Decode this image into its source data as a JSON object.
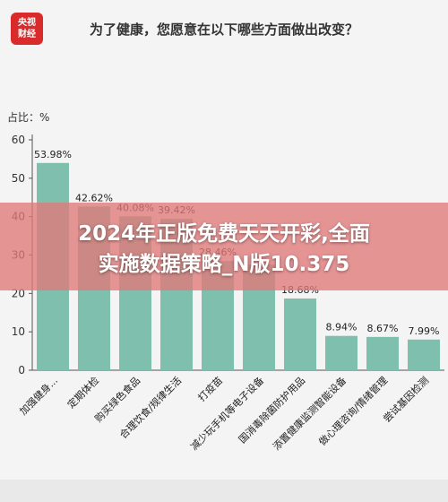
{
  "header": {
    "logo_text": "央视\n财经",
    "title": "为了健康，您愿意在以下哪些方面做出改变？"
  },
  "chart_data": {
    "type": "bar",
    "title": "为了健康，您愿意在以下哪些方面做出改变？",
    "ylabel": "占比：%",
    "ylim": [
      0,
      60
    ],
    "yticks": [
      0,
      10,
      20,
      30,
      40,
      50,
      60
    ],
    "grid": false,
    "bar_color": "#7fbfad",
    "categories": [
      "加强健身...",
      "定期体检",
      "购买绿色食品",
      "合理饮食/规律生活",
      "打疫苗",
      "减少玩手机等电子设备",
      "国消毒除菌防护用品",
      "添置健康监测智能设备",
      "做心理咨询/情绪管理",
      "尝试基因检测"
    ],
    "values": [
      53.98,
      42.62,
      40.08,
      39.42,
      28.46,
      27.5,
      18.68,
      8.94,
      8.67,
      7.99
    ],
    "value_labels": [
      "53.98%",
      "42.62%",
      "40.08%",
      "39.42%",
      "28.46%",
      "",
      "18.68%",
      "8.94%",
      "8.67%",
      "7.99%"
    ]
  },
  "overlay_banner": {
    "line1": "2024年正版免费天天开彩,全面",
    "line2": "实施数据策略_N版10.375"
  }
}
